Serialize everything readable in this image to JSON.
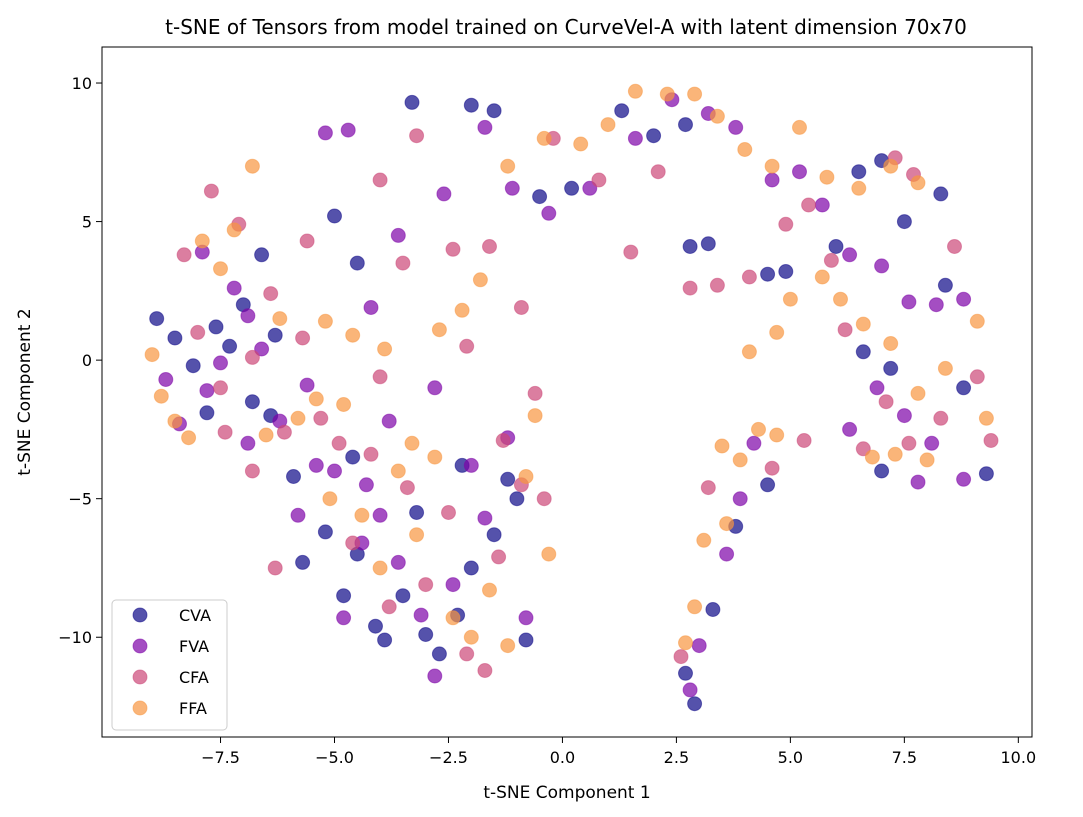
{
  "chart_data": {
    "type": "scatter",
    "title": "t-SNE of Tensors from model trained on CurveVel-A with latent dimension 70x70",
    "xlabel": "t-SNE Component 1",
    "ylabel": "t-SNE Component 2",
    "xlim": [
      -10.1,
      10.3
    ],
    "ylim": [
      -13.6,
      11.3
    ],
    "xticks": [
      -7.5,
      -5.0,
      -2.5,
      0.0,
      2.5,
      5.0,
      7.5,
      10.0
    ],
    "xtick_labels": [
      "−7.5",
      "−5.0",
      "−2.5",
      "0.0",
      "2.5",
      "5.0",
      "7.5",
      "10.0"
    ],
    "yticks": [
      10,
      5,
      0,
      -5,
      -10
    ],
    "ytick_labels": [
      "10",
      "5",
      "0",
      "−5",
      "−10"
    ],
    "grid": false,
    "legend_position": "lower-left",
    "series": [
      {
        "name": "CVA",
        "color": "#0d0887",
        "points": [
          [
            -8.9,
            1.5
          ],
          [
            -8.5,
            0.8
          ],
          [
            -8.1,
            -0.2
          ],
          [
            -7.6,
            1.2
          ],
          [
            -7.3,
            0.5
          ],
          [
            -7.0,
            2.0
          ],
          [
            -6.8,
            -1.5
          ],
          [
            -6.6,
            3.8
          ],
          [
            -6.3,
            0.9
          ],
          [
            -5.9,
            -4.2
          ],
          [
            -5.7,
            -7.3
          ],
          [
            -5.2,
            -6.2
          ],
          [
            -4.8,
            -8.5
          ],
          [
            -4.5,
            -7.0
          ],
          [
            -4.1,
            -9.6
          ],
          [
            -3.9,
            -10.1
          ],
          [
            -3.5,
            -8.5
          ],
          [
            -3.0,
            -9.9
          ],
          [
            -2.7,
            -10.6
          ],
          [
            -2.3,
            -9.2
          ],
          [
            -2.0,
            -7.5
          ],
          [
            -1.5,
            -6.3
          ],
          [
            -1.2,
            -4.3
          ],
          [
            -0.8,
            -10.1
          ],
          [
            -5.0,
            5.2
          ],
          [
            -4.5,
            3.5
          ],
          [
            -3.3,
            9.3
          ],
          [
            -2.0,
            9.2
          ],
          [
            -1.5,
            9.0
          ],
          [
            -0.5,
            5.9
          ],
          [
            0.2,
            6.2
          ],
          [
            1.3,
            9.0
          ],
          [
            2.0,
            8.1
          ],
          [
            2.7,
            8.5
          ],
          [
            2.8,
            4.1
          ],
          [
            3.2,
            4.2
          ],
          [
            4.5,
            3.1
          ],
          [
            4.9,
            3.2
          ],
          [
            6.0,
            4.1
          ],
          [
            6.5,
            6.8
          ],
          [
            7.0,
            7.2
          ],
          [
            7.5,
            5.0
          ],
          [
            8.3,
            6.0
          ],
          [
            8.4,
            2.7
          ],
          [
            6.6,
            0.3
          ],
          [
            7.2,
            -0.3
          ],
          [
            8.8,
            -1.0
          ],
          [
            9.3,
            -4.1
          ],
          [
            7.0,
            -4.0
          ],
          [
            4.5,
            -4.5
          ],
          [
            3.8,
            -6.0
          ],
          [
            2.7,
            -11.3
          ],
          [
            2.9,
            -12.4
          ],
          [
            3.3,
            -9.0
          ],
          [
            -1.0,
            -5.0
          ],
          [
            -3.2,
            -5.5
          ],
          [
            -2.2,
            -3.8
          ],
          [
            -4.6,
            -3.5
          ],
          [
            -6.4,
            -2.0
          ],
          [
            -7.8,
            -1.9
          ]
        ]
      },
      {
        "name": "FVA",
        "color": "#7e03a8",
        "points": [
          [
            -8.7,
            -0.7
          ],
          [
            -8.4,
            -2.3
          ],
          [
            -7.9,
            3.9
          ],
          [
            -7.5,
            -0.1
          ],
          [
            -7.2,
            2.6
          ],
          [
            -6.9,
            -3.0
          ],
          [
            -6.6,
            0.4
          ],
          [
            -6.2,
            -2.2
          ],
          [
            -5.8,
            -5.6
          ],
          [
            -5.4,
            -3.8
          ],
          [
            -5.0,
            -4.0
          ],
          [
            -4.8,
            -9.3
          ],
          [
            -4.4,
            -6.6
          ],
          [
            -4.0,
            -5.6
          ],
          [
            -3.6,
            -7.3
          ],
          [
            -3.1,
            -9.2
          ],
          [
            -2.8,
            -11.4
          ],
          [
            -2.4,
            -8.1
          ],
          [
            -2.0,
            -3.8
          ],
          [
            -1.7,
            -5.7
          ],
          [
            -1.2,
            -2.8
          ],
          [
            -0.8,
            -9.3
          ],
          [
            -5.2,
            8.2
          ],
          [
            -4.7,
            8.3
          ],
          [
            -4.2,
            1.9
          ],
          [
            -3.6,
            4.5
          ],
          [
            -2.6,
            6.0
          ],
          [
            -1.7,
            8.4
          ],
          [
            -1.1,
            6.2
          ],
          [
            -0.3,
            5.3
          ],
          [
            0.6,
            6.2
          ],
          [
            1.6,
            8.0
          ],
          [
            2.4,
            9.4
          ],
          [
            3.2,
            8.9
          ],
          [
            3.8,
            8.4
          ],
          [
            4.6,
            6.5
          ],
          [
            5.2,
            6.8
          ],
          [
            5.7,
            5.6
          ],
          [
            6.3,
            3.8
          ],
          [
            7.0,
            3.4
          ],
          [
            7.6,
            2.1
          ],
          [
            8.2,
            2.0
          ],
          [
            8.8,
            2.2
          ],
          [
            6.3,
            -2.5
          ],
          [
            6.9,
            -1.0
          ],
          [
            7.5,
            -2.0
          ],
          [
            8.1,
            -3.0
          ],
          [
            8.8,
            -4.3
          ],
          [
            7.8,
            -4.4
          ],
          [
            4.2,
            -3.0
          ],
          [
            3.9,
            -5.0
          ],
          [
            3.6,
            -7.0
          ],
          [
            3.0,
            -10.3
          ],
          [
            2.8,
            -11.9
          ],
          [
            -3.8,
            -2.2
          ],
          [
            -2.8,
            -1.0
          ],
          [
            -5.6,
            -0.9
          ],
          [
            -6.9,
            1.6
          ],
          [
            -7.8,
            -1.1
          ],
          [
            -4.3,
            -4.5
          ]
        ]
      },
      {
        "name": "CFA",
        "color": "#cc4778",
        "points": [
          [
            -8.3,
            3.8
          ],
          [
            -8.0,
            1.0
          ],
          [
            -7.7,
            6.1
          ],
          [
            -7.4,
            -2.6
          ],
          [
            -7.1,
            4.9
          ],
          [
            -6.8,
            -4.0
          ],
          [
            -6.4,
            2.4
          ],
          [
            -6.1,
            -2.6
          ],
          [
            -5.7,
            0.8
          ],
          [
            -5.3,
            -2.1
          ],
          [
            -4.9,
            -3.0
          ],
          [
            -4.6,
            -6.6
          ],
          [
            -4.2,
            -3.4
          ],
          [
            -3.8,
            -8.9
          ],
          [
            -3.4,
            -4.6
          ],
          [
            -3.0,
            -8.1
          ],
          [
            -2.5,
            -5.5
          ],
          [
            -2.1,
            -10.6
          ],
          [
            -1.7,
            -11.2
          ],
          [
            -1.4,
            -7.1
          ],
          [
            -0.9,
            -4.5
          ],
          [
            -0.6,
            -1.2
          ],
          [
            -4.0,
            6.5
          ],
          [
            -3.2,
            8.1
          ],
          [
            -2.4,
            4.0
          ],
          [
            -1.6,
            4.1
          ],
          [
            -0.9,
            1.9
          ],
          [
            -0.2,
            8.0
          ],
          [
            0.8,
            6.5
          ],
          [
            1.5,
            3.9
          ],
          [
            2.1,
            6.8
          ],
          [
            2.8,
            2.6
          ],
          [
            3.4,
            2.7
          ],
          [
            4.1,
            3.0
          ],
          [
            4.9,
            4.9
          ],
          [
            5.4,
            5.6
          ],
          [
            5.9,
            3.6
          ],
          [
            6.2,
            1.1
          ],
          [
            6.6,
            -3.2
          ],
          [
            7.1,
            -1.5
          ],
          [
            7.6,
            -3.0
          ],
          [
            8.3,
            -2.1
          ],
          [
            9.1,
            -0.6
          ],
          [
            9.4,
            -2.9
          ],
          [
            7.7,
            6.7
          ],
          [
            8.6,
            4.1
          ],
          [
            7.3,
            7.3
          ],
          [
            5.3,
            -2.9
          ],
          [
            4.6,
            -3.9
          ],
          [
            3.2,
            -4.6
          ],
          [
            2.6,
            -10.7
          ],
          [
            -6.3,
            -7.5
          ],
          [
            -5.6,
            4.3
          ],
          [
            -4.0,
            -0.6
          ],
          [
            -2.1,
            0.5
          ],
          [
            -6.8,
            0.1
          ],
          [
            -7.5,
            -1.0
          ],
          [
            -3.5,
            3.5
          ],
          [
            -1.3,
            -2.9
          ],
          [
            -0.4,
            -5.0
          ]
        ]
      },
      {
        "name": "FFA",
        "color": "#f89540",
        "points": [
          [
            -9.0,
            0.2
          ],
          [
            -8.8,
            -1.3
          ],
          [
            -8.5,
            -2.2
          ],
          [
            -8.2,
            -2.8
          ],
          [
            -7.9,
            4.3
          ],
          [
            -7.5,
            3.3
          ],
          [
            -7.2,
            4.7
          ],
          [
            -6.8,
            7.0
          ],
          [
            -6.5,
            -2.7
          ],
          [
            -6.2,
            1.5
          ],
          [
            -5.8,
            -2.1
          ],
          [
            -5.4,
            -1.4
          ],
          [
            -5.1,
            -5.0
          ],
          [
            -4.8,
            -1.6
          ],
          [
            -4.4,
            -5.6
          ],
          [
            -4.0,
            -7.5
          ],
          [
            -3.6,
            -4.0
          ],
          [
            -3.2,
            -6.3
          ],
          [
            -2.8,
            -3.5
          ],
          [
            -2.4,
            -9.3
          ],
          [
            -2.0,
            -10.0
          ],
          [
            -1.6,
            -8.3
          ],
          [
            -1.2,
            -10.3
          ],
          [
            -0.8,
            -4.2
          ],
          [
            -0.3,
            -7.0
          ],
          [
            -5.2,
            1.4
          ],
          [
            -4.6,
            0.9
          ],
          [
            -3.9,
            0.4
          ],
          [
            -2.7,
            1.1
          ],
          [
            -2.2,
            1.8
          ],
          [
            -1.8,
            2.9
          ],
          [
            -1.2,
            7.0
          ],
          [
            -0.4,
            8.0
          ],
          [
            0.4,
            7.8
          ],
          [
            1.0,
            8.5
          ],
          [
            1.6,
            9.7
          ],
          [
            2.3,
            9.6
          ],
          [
            2.9,
            9.6
          ],
          [
            3.4,
            8.8
          ],
          [
            4.0,
            7.6
          ],
          [
            4.6,
            7.0
          ],
          [
            5.2,
            8.4
          ],
          [
            5.8,
            6.6
          ],
          [
            6.5,
            6.2
          ],
          [
            7.2,
            7.0
          ],
          [
            7.8,
            6.4
          ],
          [
            5.7,
            3.0
          ],
          [
            6.1,
            2.2
          ],
          [
            6.6,
            1.3
          ],
          [
            7.2,
            0.6
          ],
          [
            7.8,
            -1.2
          ],
          [
            8.4,
            -0.3
          ],
          [
            9.1,
            1.4
          ],
          [
            9.3,
            -2.1
          ],
          [
            8.0,
            -3.6
          ],
          [
            7.3,
            -3.4
          ],
          [
            6.8,
            -3.5
          ],
          [
            4.1,
            0.3
          ],
          [
            4.7,
            1.0
          ],
          [
            5.0,
            2.2
          ],
          [
            3.5,
            -3.1
          ],
          [
            3.9,
            -3.6
          ],
          [
            4.3,
            -2.5
          ],
          [
            4.7,
            -2.7
          ],
          [
            3.6,
            -5.9
          ],
          [
            3.1,
            -6.5
          ],
          [
            2.9,
            -8.9
          ],
          [
            2.7,
            -10.2
          ],
          [
            -0.6,
            -2.0
          ],
          [
            -3.3,
            -3.0
          ]
        ]
      }
    ]
  }
}
